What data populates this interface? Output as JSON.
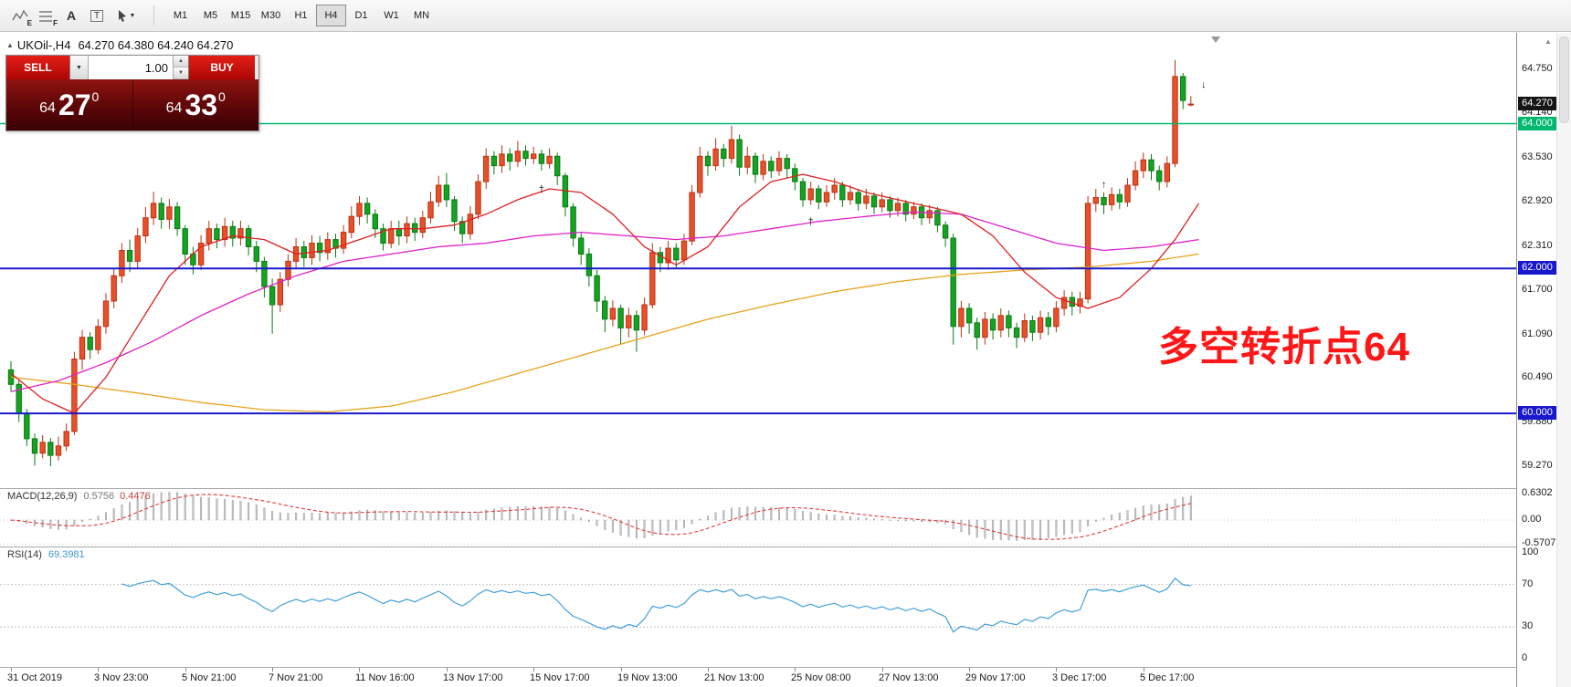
{
  "toolbar": {
    "tools": [
      {
        "name": "elliott-tool",
        "badge": "E"
      },
      {
        "name": "fibonacci-tool",
        "badge": "F"
      },
      {
        "name": "font-tool",
        "badge": "A"
      },
      {
        "name": "text-label-tool",
        "badge": "T"
      },
      {
        "name": "cursor-tool",
        "badge": ""
      }
    ],
    "timeframes": [
      "M1",
      "M5",
      "M15",
      "M30",
      "H1",
      "H4",
      "D1",
      "W1",
      "MN"
    ],
    "active_timeframe": "H4"
  },
  "trade_panel": {
    "sell_label": "SELL",
    "buy_label": "BUY",
    "volume": "1.00",
    "sell_price": {
      "small": "64",
      "big": "27",
      "sup": "0"
    },
    "buy_price": {
      "small": "64",
      "big": "33",
      "sup": "0"
    }
  },
  "chart": {
    "type": "candlestick",
    "header": {
      "symbol": "UKOil-,H4",
      "ohlc": "64.270 64.380 64.240 64.270"
    },
    "annotation": {
      "text": "多空转折点64",
      "color": "#ff1616"
    },
    "scale": {
      "min": 58.968,
      "max": 65.254
    },
    "axis_labels": [
      "64.750",
      "64.140",
      "63.530",
      "62.920",
      "62.310",
      "61.700",
      "61.090",
      "60.490",
      "59.880",
      "59.270"
    ],
    "bid_badge": {
      "label": "64.270",
      "value": 64.27,
      "bg": "#161616",
      "fg": "#ffffff"
    },
    "levels": [
      {
        "label": "64.000",
        "value": 64.0,
        "color": "#00b96e",
        "width": 1.6
      },
      {
        "label": "62.000",
        "value": 62.0,
        "color": "#1818cc",
        "width": 2
      },
      {
        "label": "60.000",
        "value": 60.0,
        "color": "#1818cc",
        "width": 2
      }
    ],
    "colors": {
      "up_fill": "#e8502a",
      "up_border": "#bb3115",
      "down_fill": "#14a322",
      "down_border": "#0a7a12"
    },
    "candles": [
      [
        60.6,
        60.72,
        60.3,
        60.4
      ],
      [
        60.4,
        60.46,
        59.88,
        60.0
      ],
      [
        60.0,
        60.06,
        59.55,
        59.65
      ],
      [
        59.65,
        59.72,
        59.28,
        59.45
      ],
      [
        59.45,
        59.7,
        59.38,
        59.6
      ],
      [
        59.6,
        59.66,
        59.27,
        59.42
      ],
      [
        59.42,
        59.68,
        59.35,
        59.55
      ],
      [
        59.55,
        59.86,
        59.48,
        59.75
      ],
      [
        59.75,
        60.85,
        59.7,
        60.75
      ],
      [
        60.75,
        61.15,
        60.6,
        61.05
      ],
      [
        61.05,
        61.12,
        60.75,
        60.88
      ],
      [
        60.88,
        61.3,
        60.82,
        61.2
      ],
      [
        61.2,
        61.66,
        61.1,
        61.55
      ],
      [
        61.55,
        62.0,
        61.45,
        61.9
      ],
      [
        61.9,
        62.35,
        61.8,
        62.25
      ],
      [
        62.25,
        62.4,
        61.95,
        62.1
      ],
      [
        62.1,
        62.56,
        62.0,
        62.45
      ],
      [
        62.45,
        62.85,
        62.35,
        62.7
      ],
      [
        62.7,
        63.06,
        62.6,
        62.9
      ],
      [
        62.9,
        62.98,
        62.55,
        62.68
      ],
      [
        62.68,
        62.96,
        62.55,
        62.85
      ],
      [
        62.85,
        62.92,
        62.45,
        62.55
      ],
      [
        62.55,
        62.6,
        62.05,
        62.2
      ],
      [
        62.2,
        62.3,
        61.92,
        62.05
      ],
      [
        62.05,
        62.46,
        61.98,
        62.35
      ],
      [
        62.35,
        62.66,
        62.25,
        62.55
      ],
      [
        62.55,
        62.62,
        62.28,
        62.4
      ],
      [
        62.4,
        62.7,
        62.3,
        62.58
      ],
      [
        62.58,
        62.66,
        62.3,
        62.42
      ],
      [
        62.42,
        62.66,
        62.32,
        62.55
      ],
      [
        62.55,
        62.6,
        62.18,
        62.3
      ],
      [
        62.3,
        62.38,
        61.95,
        62.1
      ],
      [
        62.1,
        62.16,
        61.6,
        61.75
      ],
      [
        61.75,
        61.86,
        61.1,
        61.5
      ],
      [
        61.5,
        61.95,
        61.4,
        61.85
      ],
      [
        61.85,
        62.2,
        61.75,
        62.1
      ],
      [
        62.1,
        62.42,
        62.0,
        62.3
      ],
      [
        62.3,
        62.38,
        62.02,
        62.15
      ],
      [
        62.15,
        62.46,
        62.05,
        62.35
      ],
      [
        62.35,
        62.45,
        62.1,
        62.22
      ],
      [
        62.22,
        62.5,
        62.12,
        62.4
      ],
      [
        62.4,
        62.48,
        62.15,
        62.28
      ],
      [
        62.28,
        62.6,
        62.2,
        62.5
      ],
      [
        62.5,
        62.86,
        62.42,
        62.72
      ],
      [
        62.72,
        63.0,
        62.6,
        62.9
      ],
      [
        62.9,
        62.98,
        62.62,
        62.75
      ],
      [
        62.75,
        62.82,
        62.42,
        62.55
      ],
      [
        62.55,
        62.62,
        62.25,
        62.35
      ],
      [
        62.35,
        62.66,
        62.28,
        62.55
      ],
      [
        62.55,
        62.66,
        62.32,
        62.45
      ],
      [
        62.45,
        62.72,
        62.35,
        62.62
      ],
      [
        62.62,
        62.7,
        62.38,
        62.5
      ],
      [
        62.5,
        62.8,
        62.42,
        62.7
      ],
      [
        62.7,
        63.06,
        62.62,
        62.92
      ],
      [
        62.92,
        63.28,
        62.85,
        63.15
      ],
      [
        63.15,
        63.32,
        62.85,
        62.95
      ],
      [
        62.95,
        63.0,
        62.52,
        62.65
      ],
      [
        62.65,
        62.72,
        62.35,
        62.48
      ],
      [
        62.48,
        62.86,
        62.4,
        62.75
      ],
      [
        62.75,
        63.3,
        62.68,
        63.2
      ],
      [
        63.2,
        63.66,
        63.1,
        63.55
      ],
      [
        63.55,
        63.62,
        63.3,
        63.42
      ],
      [
        63.42,
        63.7,
        63.32,
        63.58
      ],
      [
        63.58,
        63.66,
        63.35,
        63.48
      ],
      [
        63.48,
        63.76,
        63.4,
        63.62
      ],
      [
        63.62,
        63.7,
        63.42,
        63.52
      ],
      [
        63.52,
        63.68,
        63.44,
        63.58
      ],
      [
        63.58,
        63.64,
        63.35,
        63.45
      ],
      [
        63.45,
        63.66,
        63.38,
        63.55
      ],
      [
        63.55,
        63.6,
        63.15,
        63.28
      ],
      [
        63.28,
        63.32,
        62.72,
        62.85
      ],
      [
        62.85,
        62.9,
        62.3,
        62.42
      ],
      [
        62.42,
        62.5,
        62.05,
        62.2
      ],
      [
        62.2,
        62.28,
        61.75,
        61.9
      ],
      [
        61.9,
        61.98,
        61.4,
        61.55
      ],
      [
        61.55,
        61.62,
        61.12,
        61.3
      ],
      [
        61.3,
        61.56,
        61.2,
        61.45
      ],
      [
        61.45,
        61.5,
        60.95,
        61.18
      ],
      [
        61.18,
        61.46,
        61.05,
        61.35
      ],
      [
        61.35,
        61.42,
        60.85,
        61.15
      ],
      [
        61.15,
        61.6,
        61.08,
        61.5
      ],
      [
        61.5,
        62.35,
        61.45,
        62.22
      ],
      [
        62.22,
        62.3,
        61.95,
        62.08
      ],
      [
        62.08,
        62.38,
        61.98,
        62.28
      ],
      [
        62.28,
        62.35,
        62.0,
        62.12
      ],
      [
        62.12,
        62.48,
        62.05,
        62.38
      ],
      [
        62.38,
        63.15,
        62.32,
        63.05
      ],
      [
        63.05,
        63.68,
        62.98,
        63.55
      ],
      [
        63.55,
        63.62,
        63.28,
        63.42
      ],
      [
        63.42,
        63.8,
        63.35,
        63.65
      ],
      [
        63.65,
        63.72,
        63.4,
        63.52
      ],
      [
        63.52,
        63.97,
        63.45,
        63.78
      ],
      [
        63.78,
        63.85,
        63.28,
        63.4
      ],
      [
        63.4,
        63.68,
        63.3,
        63.55
      ],
      [
        63.55,
        63.6,
        63.18,
        63.3
      ],
      [
        63.3,
        63.58,
        63.22,
        63.48
      ],
      [
        63.48,
        63.55,
        63.25,
        63.35
      ],
      [
        63.35,
        63.62,
        63.28,
        63.52
      ],
      [
        63.52,
        63.58,
        63.25,
        63.38
      ],
      [
        63.38,
        63.45,
        63.08,
        63.2
      ],
      [
        63.2,
        63.25,
        62.85,
        62.95
      ],
      [
        62.95,
        63.2,
        62.88,
        63.1
      ],
      [
        63.1,
        63.15,
        62.82,
        62.92
      ],
      [
        62.92,
        63.15,
        62.85,
        63.05
      ],
      [
        63.05,
        63.25,
        62.95,
        63.15
      ],
      [
        63.15,
        63.2,
        62.85,
        62.95
      ],
      [
        62.95,
        63.15,
        62.88,
        63.05
      ],
      [
        63.05,
        63.1,
        62.8,
        62.9
      ],
      [
        62.9,
        63.1,
        62.82,
        63.0
      ],
      [
        63.0,
        63.05,
        62.75,
        62.85
      ],
      [
        62.85,
        63.05,
        62.78,
        62.95
      ],
      [
        62.95,
        63.0,
        62.7,
        62.8
      ],
      [
        62.8,
        62.98,
        62.72,
        62.9
      ],
      [
        62.9,
        62.95,
        62.65,
        62.75
      ],
      [
        62.75,
        62.92,
        62.68,
        62.85
      ],
      [
        62.85,
        62.9,
        62.6,
        62.7
      ],
      [
        62.7,
        62.88,
        62.62,
        62.8
      ],
      [
        62.8,
        62.85,
        62.5,
        62.6
      ],
      [
        62.6,
        62.65,
        62.3,
        62.42
      ],
      [
        62.42,
        62.48,
        60.95,
        61.2
      ],
      [
        61.2,
        61.55,
        61.05,
        61.45
      ],
      [
        61.45,
        61.52,
        61.1,
        61.25
      ],
      [
        61.25,
        61.32,
        60.88,
        61.05
      ],
      [
        61.05,
        61.4,
        60.95,
        61.3
      ],
      [
        61.3,
        61.38,
        61.02,
        61.15
      ],
      [
        61.15,
        61.45,
        61.05,
        61.35
      ],
      [
        61.35,
        61.42,
        61.05,
        61.18
      ],
      [
        61.18,
        61.25,
        60.9,
        61.05
      ],
      [
        61.05,
        61.38,
        60.98,
        61.28
      ],
      [
        61.28,
        61.35,
        61.0,
        61.12
      ],
      [
        61.12,
        61.42,
        61.02,
        61.32
      ],
      [
        61.32,
        61.4,
        61.08,
        61.2
      ],
      [
        61.2,
        61.55,
        61.12,
        61.45
      ],
      [
        61.45,
        61.7,
        61.35,
        61.6
      ],
      [
        61.6,
        61.68,
        61.35,
        61.48
      ],
      [
        61.48,
        61.68,
        61.38,
        61.58
      ],
      [
        61.58,
        63.0,
        61.52,
        62.9
      ],
      [
        62.9,
        63.1,
        62.78,
        62.98
      ],
      [
        62.98,
        63.05,
        62.75,
        62.88
      ],
      [
        62.88,
        63.12,
        62.8,
        63.02
      ],
      [
        63.02,
        63.1,
        62.82,
        62.92
      ],
      [
        62.92,
        63.25,
        62.85,
        63.15
      ],
      [
        63.15,
        63.48,
        63.08,
        63.35
      ],
      [
        63.35,
        63.6,
        63.25,
        63.5
      ],
      [
        63.5,
        63.58,
        63.22,
        63.35
      ],
      [
        63.35,
        63.42,
        63.08,
        63.2
      ],
      [
        63.2,
        63.55,
        63.12,
        63.45
      ],
      [
        63.45,
        64.88,
        63.4,
        64.65
      ],
      [
        64.65,
        64.7,
        64.2,
        64.32
      ],
      [
        64.27,
        64.38,
        64.24,
        64.27
      ]
    ],
    "ma_lines": [
      {
        "name": "ma-orange",
        "color": "#e6a31c",
        "points": [
          [
            0,
            60.5
          ],
          [
            8,
            60.4
          ],
          [
            16,
            60.28
          ],
          [
            24,
            60.15
          ],
          [
            32,
            60.05
          ],
          [
            40,
            60.02
          ],
          [
            48,
            60.1
          ],
          [
            56,
            60.3
          ],
          [
            64,
            60.55
          ],
          [
            72,
            60.8
          ],
          [
            80,
            61.05
          ],
          [
            88,
            61.3
          ],
          [
            96,
            61.5
          ],
          [
            104,
            61.68
          ],
          [
            112,
            61.82
          ],
          [
            120,
            61.92
          ],
          [
            128,
            61.98
          ],
          [
            136,
            62.02
          ],
          [
            144,
            62.1
          ],
          [
            150,
            62.2
          ]
        ]
      },
      {
        "name": "ma-magenta",
        "color": "#dd22cc",
        "points": [
          [
            0,
            60.3
          ],
          [
            6,
            60.45
          ],
          [
            12,
            60.7
          ],
          [
            18,
            61.0
          ],
          [
            24,
            61.35
          ],
          [
            30,
            61.65
          ],
          [
            36,
            61.9
          ],
          [
            42,
            62.1
          ],
          [
            48,
            62.2
          ],
          [
            54,
            62.3
          ],
          [
            60,
            62.35
          ],
          [
            66,
            62.45
          ],
          [
            72,
            62.5
          ],
          [
            78,
            62.45
          ],
          [
            84,
            62.4
          ],
          [
            90,
            62.45
          ],
          [
            96,
            62.55
          ],
          [
            102,
            62.65
          ],
          [
            108,
            62.72
          ],
          [
            114,
            62.78
          ],
          [
            120,
            62.75
          ],
          [
            126,
            62.55
          ],
          [
            132,
            62.35
          ],
          [
            138,
            62.25
          ],
          [
            144,
            62.3
          ],
          [
            150,
            62.4
          ]
        ]
      },
      {
        "name": "ma-red",
        "color": "#e02020",
        "points": [
          [
            0,
            60.55
          ],
          [
            4,
            60.2
          ],
          [
            8,
            60.0
          ],
          [
            12,
            60.5
          ],
          [
            16,
            61.2
          ],
          [
            20,
            61.9
          ],
          [
            24,
            62.3
          ],
          [
            28,
            62.45
          ],
          [
            32,
            62.4
          ],
          [
            36,
            62.2
          ],
          [
            40,
            62.25
          ],
          [
            44,
            62.4
          ],
          [
            48,
            62.55
          ],
          [
            52,
            62.55
          ],
          [
            56,
            62.6
          ],
          [
            60,
            62.75
          ],
          [
            64,
            62.95
          ],
          [
            68,
            63.1
          ],
          [
            72,
            63.05
          ],
          [
            76,
            62.75
          ],
          [
            80,
            62.3
          ],
          [
            84,
            62.05
          ],
          [
            88,
            62.3
          ],
          [
            92,
            62.85
          ],
          [
            96,
            63.2
          ],
          [
            100,
            63.3
          ],
          [
            104,
            63.2
          ],
          [
            108,
            63.05
          ],
          [
            112,
            62.95
          ],
          [
            116,
            62.85
          ],
          [
            120,
            62.75
          ],
          [
            124,
            62.45
          ],
          [
            128,
            61.95
          ],
          [
            132,
            61.6
          ],
          [
            136,
            61.45
          ],
          [
            140,
            61.6
          ],
          [
            144,
            62.0
          ],
          [
            147,
            62.4
          ],
          [
            150,
            62.9
          ]
        ]
      }
    ],
    "markers": [
      {
        "i": 67,
        "price": 63.05,
        "glyph": "†"
      },
      {
        "i": 101,
        "price": 62.6,
        "glyph": "†"
      },
      {
        "i": 138,
        "price": 63.12,
        "glyph": "↑"
      },
      {
        "i": 150.6,
        "price": 64.5,
        "glyph": "↓"
      }
    ]
  },
  "macd": {
    "name": "MACD(12,26,9)",
    "value_main": "0.5756",
    "value_signal": "0.4476",
    "axis_labels": [
      {
        "text": "0.6302",
        "value": 0.6302
      },
      {
        "text": "0.00",
        "value": 0
      },
      {
        "text": "-0.5707",
        "value": -0.5707
      }
    ],
    "params": {
      "fast": 12,
      "slow": 26,
      "signal": 9
    }
  },
  "rsi": {
    "name": "RSI(14)",
    "value": "69.3981",
    "axis_labels": [
      {
        "text": "100",
        "value": 100
      },
      {
        "text": "70",
        "value": 70
      },
      {
        "text": "30",
        "value": 30
      },
      {
        "text": "0",
        "value": 0
      }
    ],
    "levels": [
      70,
      30
    ],
    "period": 14
  },
  "time_axis": {
    "labels": [
      "31 Oct 2019",
      "3 Nov 23:00",
      "5 Nov 21:00",
      "7 Nov 21:00",
      "11 Nov 16:00",
      "13 Nov 17:00",
      "15 Nov 17:00",
      "19 Nov 13:00",
      "21 Nov 13:00",
      "25 Nov 08:00",
      "27 Nov 13:00",
      "29 Nov 17:00",
      "3 Dec 17:00",
      "5 Dec 17:00"
    ],
    "tick_step": 11
  }
}
